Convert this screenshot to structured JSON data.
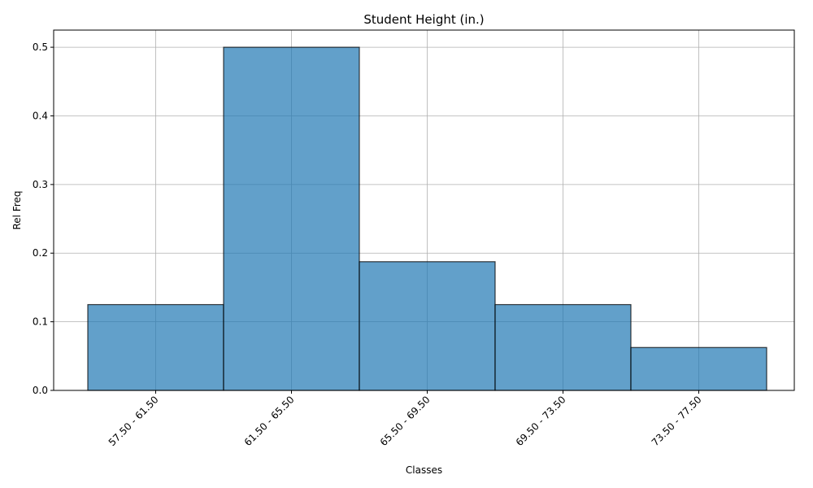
{
  "chart_data": {
    "type": "bar",
    "title": "Student Height (in.)",
    "xlabel": "Classes",
    "ylabel": "Rel Freq",
    "categories": [
      "57.50 - 61.50",
      "61.50 - 65.50",
      "65.50 - 69.50",
      "69.50 - 73.50",
      "73.50 - 77.50"
    ],
    "values": [
      0.125,
      0.5,
      0.1875,
      0.125,
      0.0625
    ],
    "ylim": [
      0,
      0.525
    ],
    "yticks": [
      0.0,
      0.1,
      0.2,
      0.3,
      0.4,
      0.5
    ],
    "ytick_labels": [
      "0.0",
      "0.1",
      "0.2",
      "0.3",
      "0.4",
      "0.5"
    ],
    "grid": true,
    "bar_color": "#1f77b4",
    "bar_edge_color": "#000000"
  }
}
